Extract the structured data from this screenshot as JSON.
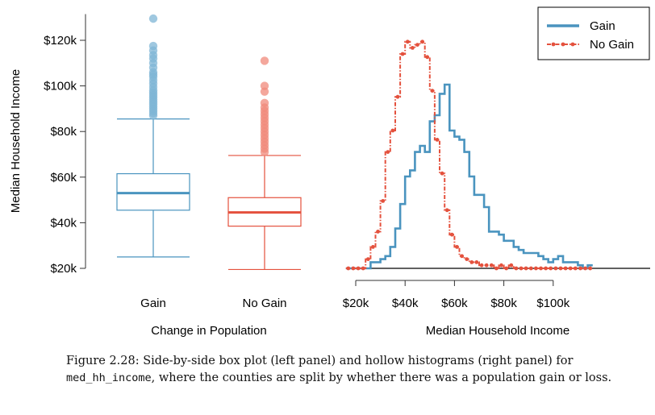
{
  "colors": {
    "gain": "#4a94bf",
    "gain_point": "#7fb5d6",
    "nogain": "#e4513d",
    "nogain_point": "#f08a7b",
    "axis": "#333333"
  },
  "caption": {
    "figure": "Figure 2.28:",
    "text_a": "Side-by-side box plot (left panel) and hollow histograms (right panel) for",
    "code": "med_hh_income",
    "text_b": ", where the counties are split by whether there was a population gain or loss."
  },
  "chart_data": [
    {
      "type": "box",
      "xlabel": "Change in Population",
      "ylabel": "Median Household Income",
      "ylim": [
        18000,
        133000
      ],
      "yticks": [
        20000,
        40000,
        60000,
        80000,
        100000,
        120000
      ],
      "ytick_labels": [
        "$20k",
        "$40k",
        "$60k",
        "$80k",
        "$100k",
        "$120k"
      ],
      "categories": [
        "Gain",
        "No Gain"
      ],
      "boxes": [
        {
          "name": "Gain",
          "whisker_low": 25000,
          "q1": 45500,
          "median": 53000,
          "q3": 61500,
          "whisker_high": 85500,
          "outliers": [
            87000,
            88000,
            89000,
            90000,
            91000,
            92000,
            93000,
            94000,
            95000,
            96000,
            97000,
            98000,
            99500,
            101000,
            102500,
            104000,
            105000,
            106000,
            108000,
            110000,
            112000,
            113500,
            115500,
            117500,
            129500
          ]
        },
        {
          "name": "No Gain",
          "whisker_low": 19500,
          "q1": 38500,
          "median": 44500,
          "q3": 51000,
          "whisker_high": 69500,
          "outliers": [
            71000,
            72500,
            74000,
            75500,
            77000,
            78500,
            80000,
            81500,
            83000,
            84500,
            86000,
            87500,
            89000,
            90500,
            92500,
            97500,
            100000,
            111000
          ]
        }
      ]
    },
    {
      "type": "histogram",
      "xlabel": "Median Household Income",
      "ylabel": "",
      "xlim": [
        16000,
        116000
      ],
      "xticks": [
        20000,
        40000,
        60000,
        80000,
        100000
      ],
      "xtick_labels": [
        "$20k",
        "$40k",
        "$60k",
        "$80k",
        "$100k"
      ],
      "bin_width": 2000,
      "bin_start": 16000,
      "legend": {
        "position": "top-right",
        "entries": [
          "Gain",
          "No Gain"
        ]
      },
      "series": [
        {
          "name": "Gain",
          "counts": [
            0,
            0,
            0,
            0,
            0,
            2,
            2,
            3,
            4,
            7,
            13,
            21,
            30,
            32,
            38,
            40,
            38,
            48,
            50,
            57,
            60,
            45,
            43,
            42,
            38,
            30,
            24,
            24,
            20,
            12,
            12,
            11,
            9,
            9,
            7,
            6,
            5,
            5,
            5,
            4,
            3,
            2,
            3,
            4,
            2,
            2,
            2,
            1,
            0,
            1
          ]
        },
        {
          "name": "No Gain",
          "counts": [
            0,
            0,
            0,
            0,
            3,
            7,
            12,
            22,
            38,
            45,
            56,
            70,
            74,
            72,
            73,
            74,
            69,
            58,
            42,
            31,
            19,
            11,
            7,
            4,
            3,
            2,
            2,
            1,
            1,
            1,
            0,
            1,
            0,
            1,
            0,
            0,
            0,
            0,
            0,
            0,
            0,
            0,
            0,
            0,
            0,
            0,
            0,
            0,
            0,
            0
          ]
        }
      ]
    }
  ]
}
